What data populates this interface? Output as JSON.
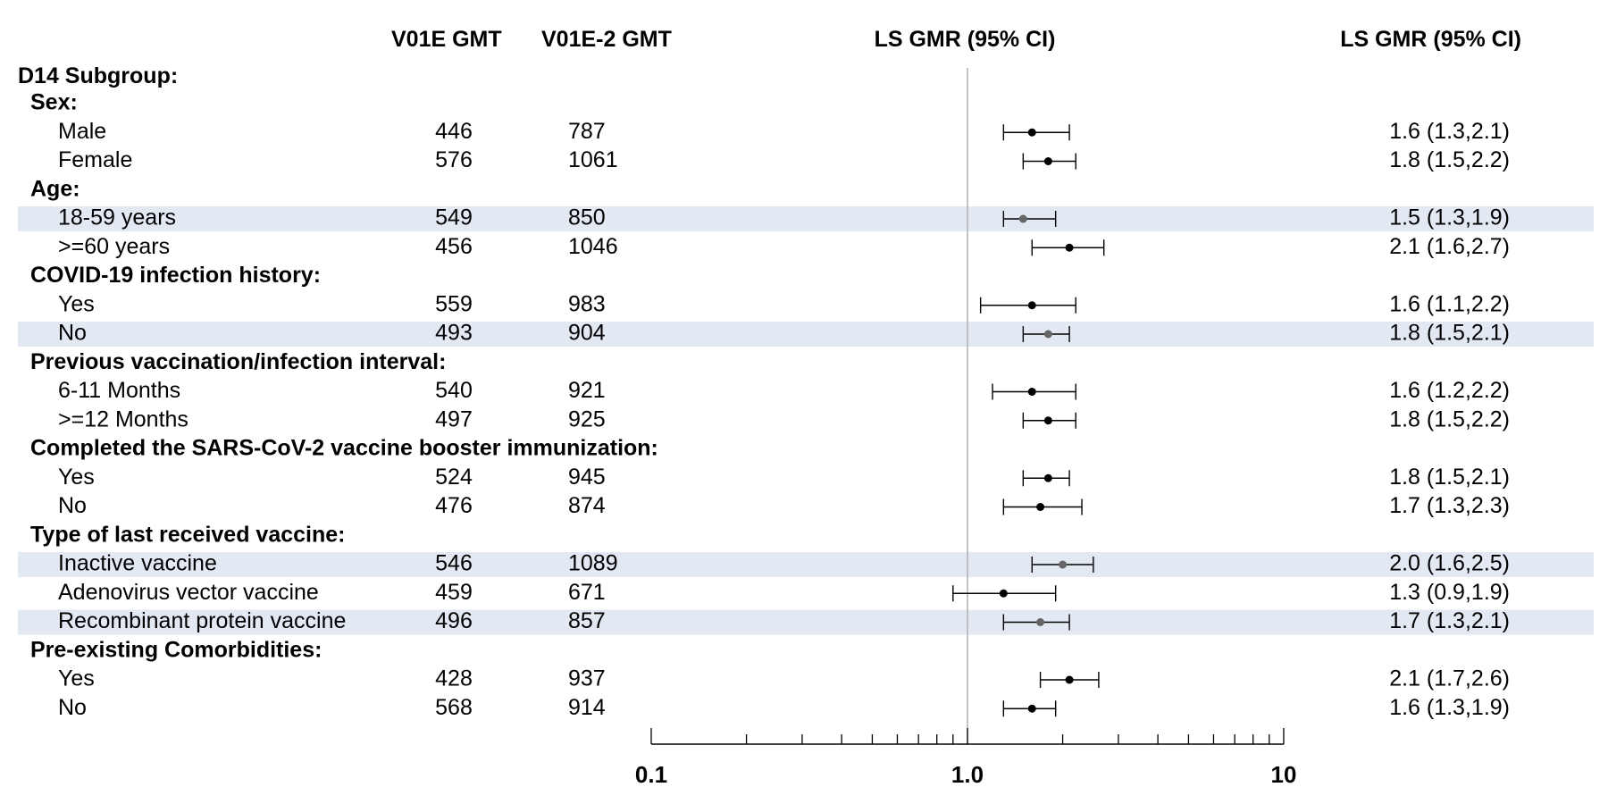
{
  "chart_data": {
    "type": "forest",
    "headers": {
      "col_v01e": "V01E GMT",
      "col_v01e2": "V01E-2 GMT",
      "plot_title": "LS GMR (95% CI)",
      "ci_text": "LS GMR (95% CI)"
    },
    "group_label": "D14 Subgroup:",
    "x_scale": "log",
    "xlim": [
      0.1,
      10
    ],
    "x_ticks": [
      {
        "value": 0.1,
        "label": "0.1"
      },
      {
        "value": 1.0,
        "label": "1.0"
      },
      {
        "value": 10,
        "label": "10"
      }
    ],
    "reference_line": 1.0,
    "categories": [
      {
        "label": "Sex:",
        "rows": [
          {
            "label": "Male",
            "v01e": "446",
            "v01e2": "787",
            "gmr": 1.6,
            "lo": 1.3,
            "hi": 2.1,
            "text": "1.6 (1.3,2.1)",
            "highlight": false
          },
          {
            "label": "Female",
            "v01e": "576",
            "v01e2": "1061",
            "gmr": 1.8,
            "lo": 1.5,
            "hi": 2.2,
            "text": "1.8 (1.5,2.2)",
            "highlight": false
          }
        ]
      },
      {
        "label": "Age:",
        "rows": [
          {
            "label": "18-59 years",
            "v01e": "549",
            "v01e2": "850",
            "gmr": 1.5,
            "lo": 1.3,
            "hi": 1.9,
            "text": "1.5 (1.3,1.9)",
            "highlight": true
          },
          {
            "label": ">=60 years",
            "v01e": "456",
            "v01e2": "1046",
            "gmr": 2.1,
            "lo": 1.6,
            "hi": 2.7,
            "text": "2.1 (1.6,2.7)",
            "highlight": false
          }
        ]
      },
      {
        "label": "COVID-19 infection history:",
        "rows": [
          {
            "label": "Yes",
            "v01e": "559",
            "v01e2": "983",
            "gmr": 1.6,
            "lo": 1.1,
            "hi": 2.2,
            "text": "1.6 (1.1,2.2)",
            "highlight": false
          },
          {
            "label": "No",
            "v01e": "493",
            "v01e2": "904",
            "gmr": 1.8,
            "lo": 1.5,
            "hi": 2.1,
            "text": "1.8 (1.5,2.1)",
            "highlight": true
          }
        ]
      },
      {
        "label": "Previous vaccination/infection interval:",
        "rows": [
          {
            "label": "6-11 Months",
            "v01e": "540",
            "v01e2": "921",
            "gmr": 1.6,
            "lo": 1.2,
            "hi": 2.2,
            "text": "1.6 (1.2,2.2)",
            "highlight": false
          },
          {
            "label": ">=12 Months",
            "v01e": "497",
            "v01e2": "925",
            "gmr": 1.8,
            "lo": 1.5,
            "hi": 2.2,
            "text": "1.8 (1.5,2.2)",
            "highlight": false
          }
        ]
      },
      {
        "label": "Completed the SARS-CoV-2 vaccine booster immunization:",
        "rows": [
          {
            "label": "Yes",
            "v01e": "524",
            "v01e2": "945",
            "gmr": 1.8,
            "lo": 1.5,
            "hi": 2.1,
            "text": "1.8 (1.5,2.1)",
            "highlight": false
          },
          {
            "label": "No",
            "v01e": "476",
            "v01e2": "874",
            "gmr": 1.7,
            "lo": 1.3,
            "hi": 2.3,
            "text": "1.7 (1.3,2.3)",
            "highlight": false
          }
        ]
      },
      {
        "label": "Type of last received vaccine:",
        "rows": [
          {
            "label": "Inactive vaccine",
            "v01e": "546",
            "v01e2": "1089",
            "gmr": 2.0,
            "lo": 1.6,
            "hi": 2.5,
            "text": "2.0 (1.6,2.5)",
            "highlight": true
          },
          {
            "label": "Adenovirus vector vaccine",
            "v01e": "459",
            "v01e2": "671",
            "gmr": 1.3,
            "lo": 0.9,
            "hi": 1.9,
            "text": "1.3 (0.9,1.9)",
            "highlight": false
          },
          {
            "label": "Recombinant protein vaccine",
            "v01e": "496",
            "v01e2": "857",
            "gmr": 1.7,
            "lo": 1.3,
            "hi": 2.1,
            "text": "1.7 (1.3,2.1)",
            "highlight": true
          }
        ]
      },
      {
        "label": "Pre-existing Comorbidities:",
        "rows": [
          {
            "label": "Yes",
            "v01e": "428",
            "v01e2": "937",
            "gmr": 2.1,
            "lo": 1.7,
            "hi": 2.6,
            "text": "2.1 (1.7,2.6)",
            "highlight": false
          },
          {
            "label": "No",
            "v01e": "568",
            "v01e2": "914",
            "gmr": 1.6,
            "lo": 1.3,
            "hi": 1.9,
            "text": "1.6 (1.3,1.9)",
            "highlight": false
          }
        ]
      }
    ],
    "colors": {
      "highlight_band": "#e2e9f3",
      "point": "#000000",
      "point_highlight": "#666666",
      "reference_line": "#b0b0b0",
      "axis": "#000000"
    }
  }
}
